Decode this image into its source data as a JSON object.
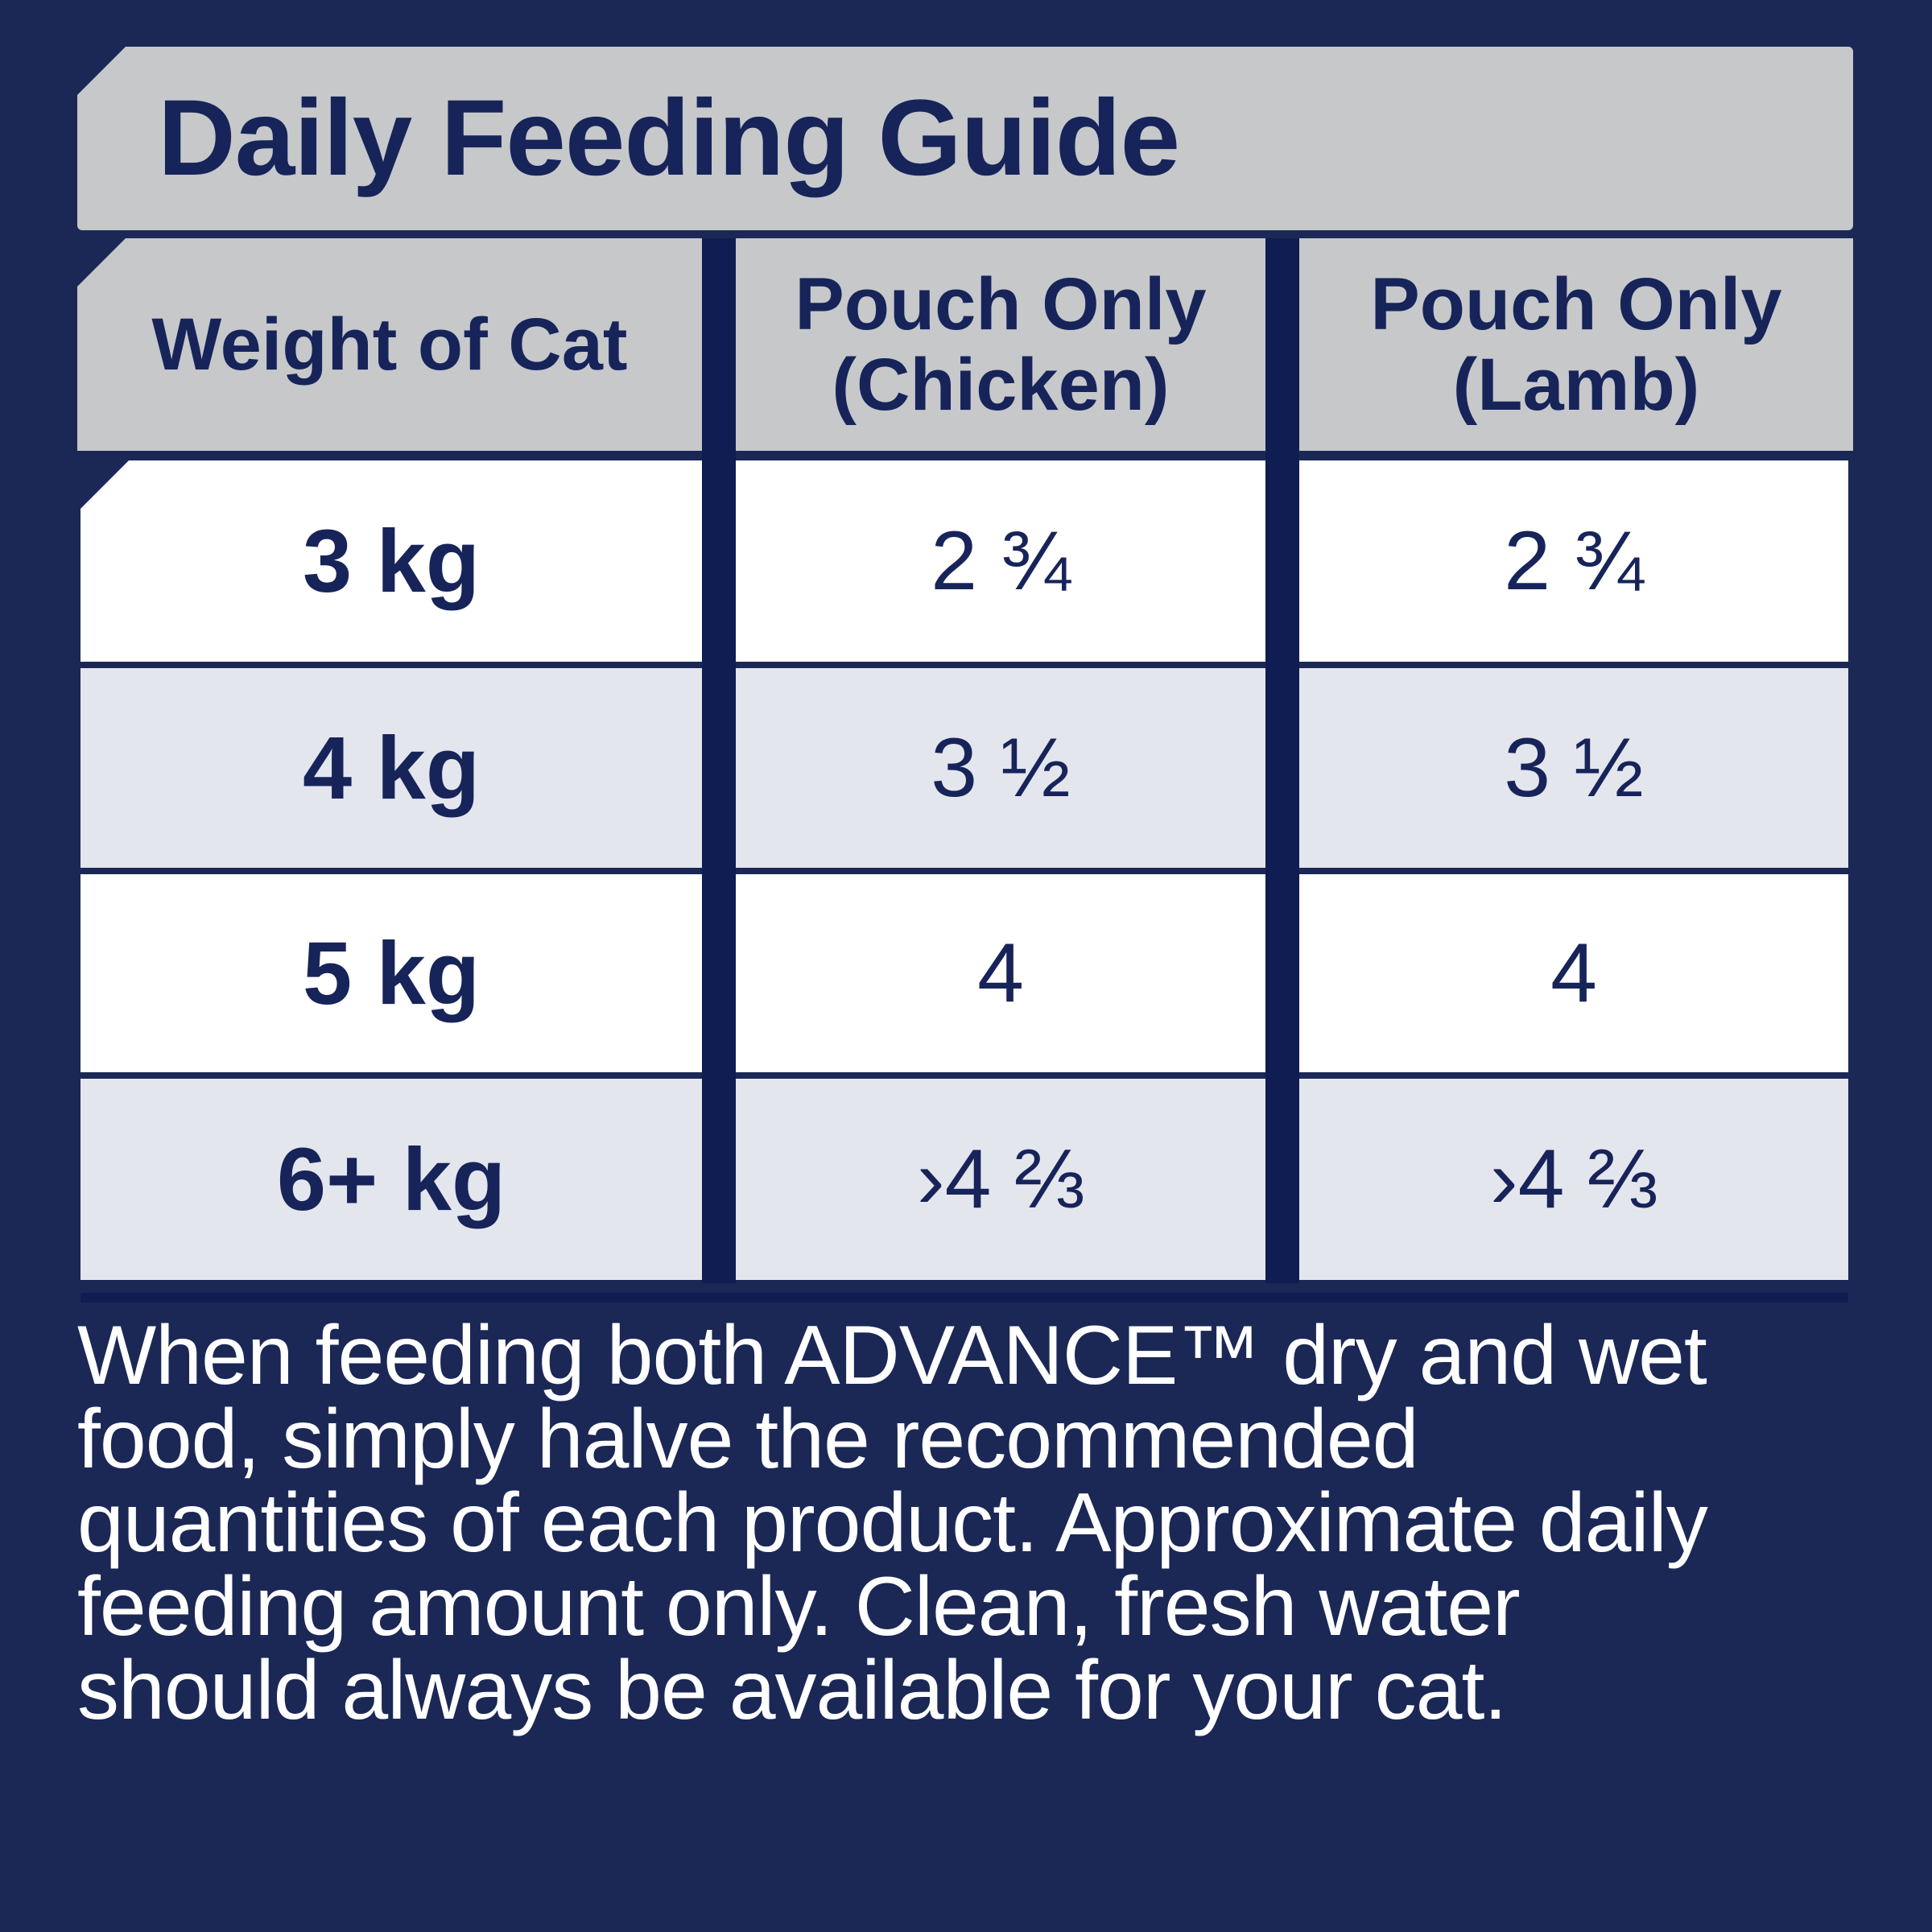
{
  "title": "Daily Feeding Guide",
  "table": {
    "headers": {
      "weight": "Weight of Cat",
      "chicken_line1": "Pouch Only",
      "chicken_line2": "(Chicken)",
      "lamb_line1": "Pouch Only",
      "lamb_line2": "(Lamb)"
    },
    "rows": [
      {
        "weight": "3 kg",
        "chicken": "2 ¾",
        "lamb": "2 ¾"
      },
      {
        "weight": "4 kg",
        "chicken": "3 ½",
        "lamb": "3 ½"
      },
      {
        "weight": "5 kg",
        "chicken": "4",
        "lamb": "4"
      },
      {
        "weight": "6+ kg",
        "chicken": "›4 ⅔",
        "lamb": "›4 ⅔"
      }
    ]
  },
  "note": {
    "lines": [
      "When feeding both ADVANCE™ dry and wet",
      "food, simply halve the recommended",
      "quantities of each product.  Approximate daily",
      "feeding amount only.  Clean, fresh water",
      "should always be available for your cat."
    ]
  },
  "colors": {
    "background": "#1b2856",
    "header_gray": "#c6c8ca",
    "row_light": "#e4e6ee",
    "text_navy": "#17245a"
  }
}
